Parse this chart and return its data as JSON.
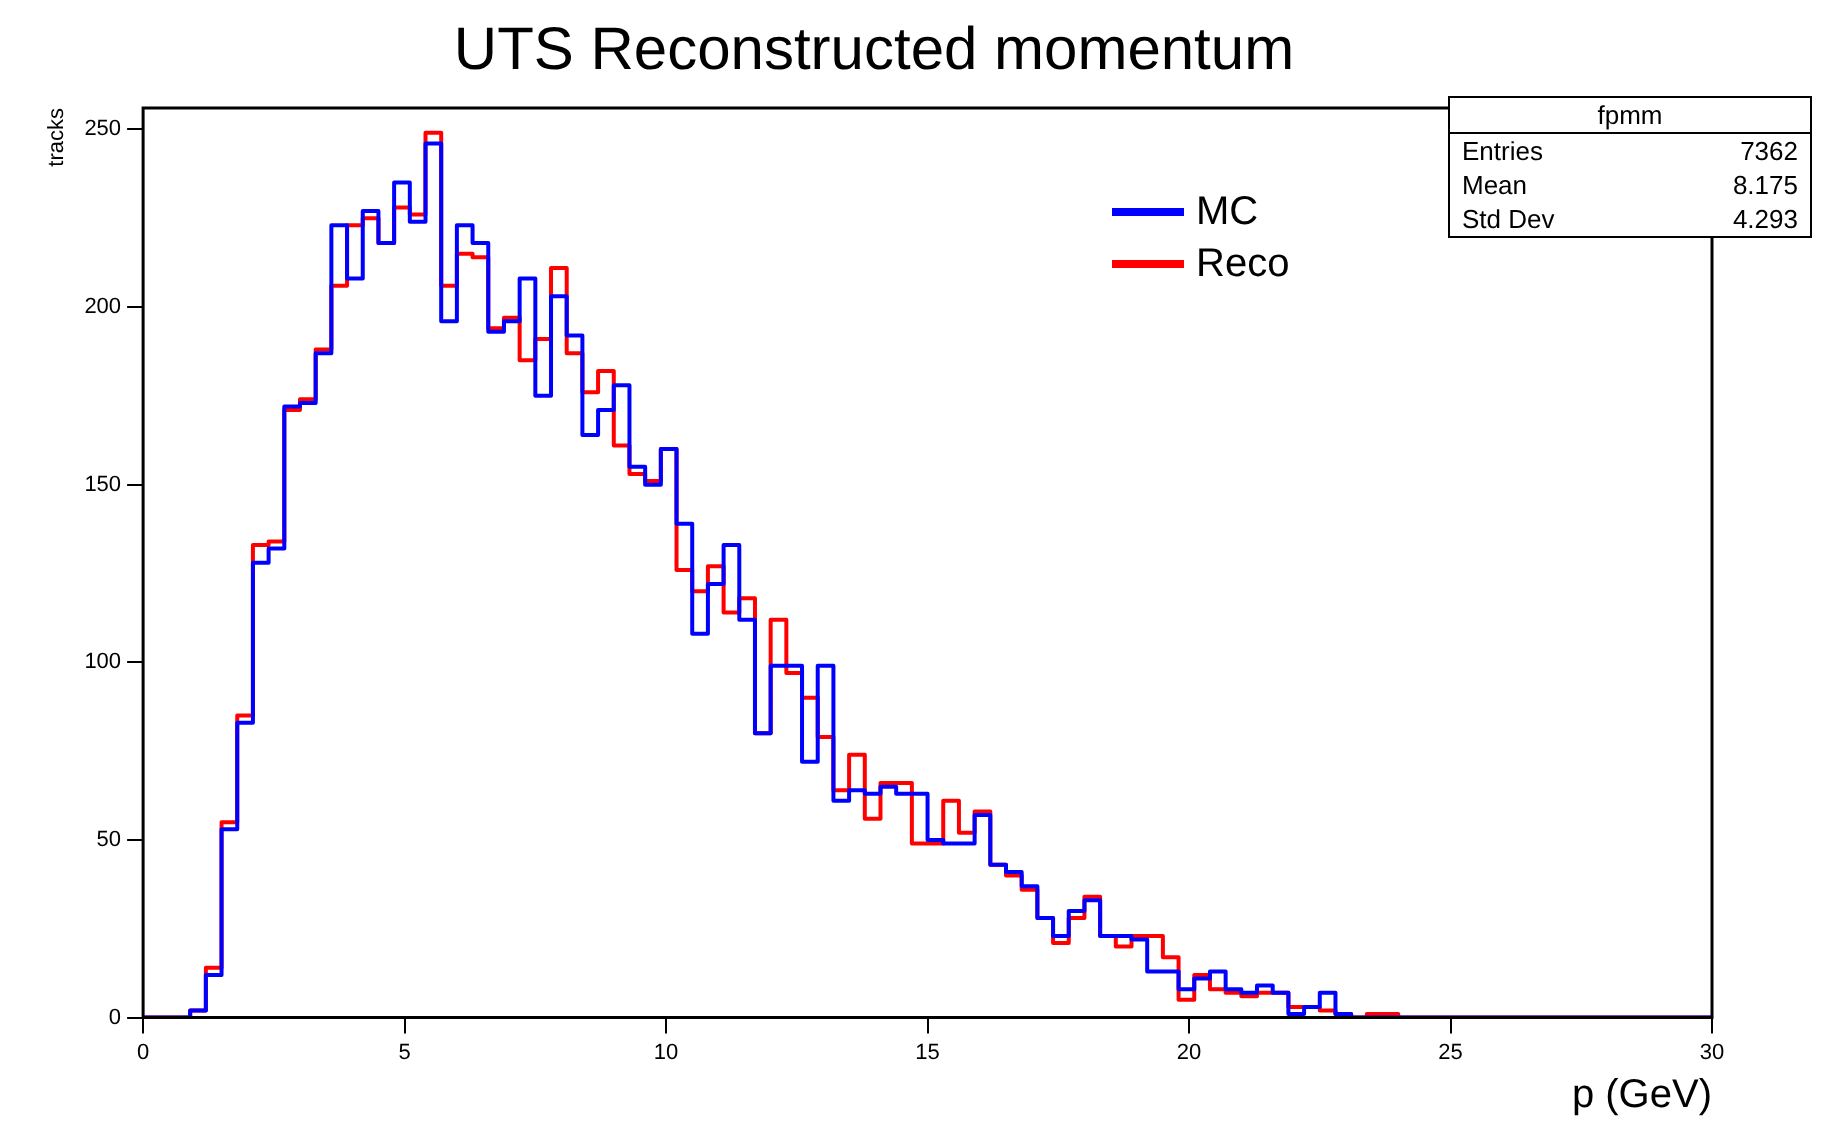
{
  "chart_data": {
    "type": "histogram",
    "title": "UTS Reconstructed momentum",
    "xlabel": "p (GeV)",
    "ylabel": "tracks",
    "bins": [
      0,
      0.3,
      0.6,
      0.9,
      1.2,
      1.5,
      1.8,
      2.1,
      2.4,
      2.7,
      3,
      3.3,
      3.6,
      3.9,
      4.2,
      4.5,
      4.8,
      5.1,
      5.4,
      5.7,
      6,
      6.3,
      6.6,
      6.9,
      7.2,
      7.5,
      7.8,
      8.1,
      8.4,
      8.7,
      9,
      9.3,
      9.6,
      9.9,
      10.2,
      10.5,
      10.8,
      11.1,
      11.4,
      11.7,
      12,
      12.3,
      12.6,
      12.9,
      13.2,
      13.5,
      13.8,
      14.1,
      14.4,
      14.7,
      15,
      15.3,
      15.6,
      15.9,
      16.2,
      16.5,
      16.8,
      17.1,
      17.4,
      17.7,
      18,
      18.3,
      18.6,
      18.9,
      19.2,
      19.5,
      19.8,
      20.1,
      20.4,
      20.7,
      21,
      21.3,
      21.6,
      21.9,
      22.2,
      22.5,
      22.8,
      23.1,
      23.4,
      23.7,
      24,
      24.3,
      24.6,
      24.9,
      25.2,
      25.5,
      25.8,
      26.1,
      26.4,
      26.7,
      27,
      27.3,
      27.6,
      27.9,
      28.2,
      28.5,
      28.8,
      29.1,
      29.4,
      29.7,
      30
    ],
    "series": [
      {
        "name": "MC",
        "color": "#0000ff",
        "values": [
          0,
          0,
          0,
          2,
          12,
          53,
          83,
          128,
          132,
          172,
          173,
          187,
          223,
          208,
          227,
          218,
          235,
          224,
          246,
          196,
          223,
          218,
          193,
          196,
          208,
          175,
          203,
          192,
          164,
          171,
          178,
          155,
          150,
          160,
          139,
          108,
          122,
          133,
          112,
          80,
          99,
          99,
          72,
          99,
          61,
          64,
          63,
          65,
          63,
          63,
          50,
          49,
          49,
          57,
          43,
          41,
          37,
          28,
          23,
          30,
          33,
          23,
          23,
          22,
          13,
          13,
          8,
          11,
          13,
          8,
          7,
          9,
          7,
          1,
          3,
          7,
          1,
          0,
          0,
          0,
          0,
          0,
          0,
          0,
          0,
          0,
          0,
          0,
          0,
          0,
          0,
          0,
          0,
          0,
          0,
          0,
          0,
          0,
          0,
          0
        ]
      },
      {
        "name": "Reco",
        "color": "#ff0000",
        "values": [
          0,
          0,
          0,
          2,
          14,
          55,
          85,
          133,
          134,
          171,
          174,
          188,
          206,
          223,
          225,
          218,
          228,
          226,
          249,
          206,
          215,
          214,
          194,
          197,
          185,
          191,
          211,
          187,
          176,
          182,
          161,
          153,
          151,
          160,
          126,
          120,
          127,
          114,
          118,
          80,
          112,
          97,
          90,
          79,
          64,
          74,
          56,
          66,
          66,
          49,
          49,
          61,
          52,
          58,
          43,
          40,
          36,
          28,
          21,
          28,
          34,
          23,
          20,
          23,
          23,
          17,
          5,
          12,
          8,
          7,
          6,
          7,
          7,
          3,
          3,
          2,
          1,
          0,
          1,
          1,
          0,
          0,
          0,
          0,
          0,
          0,
          0,
          0,
          0,
          0,
          0,
          0,
          0,
          0,
          0,
          0,
          0,
          0,
          0,
          0
        ]
      }
    ],
    "xlim": [
      0,
      30
    ],
    "xticks": [
      0,
      5,
      10,
      15,
      20,
      25,
      30
    ],
    "ylim": [
      0,
      256
    ],
    "yticks": [
      0,
      50,
      100,
      150,
      200,
      250
    ],
    "legend": "top right",
    "annotations": [
      "fpmm",
      "Entries 7362",
      "Mean 8.175",
      "Std Dev 4.293"
    ]
  }
}
